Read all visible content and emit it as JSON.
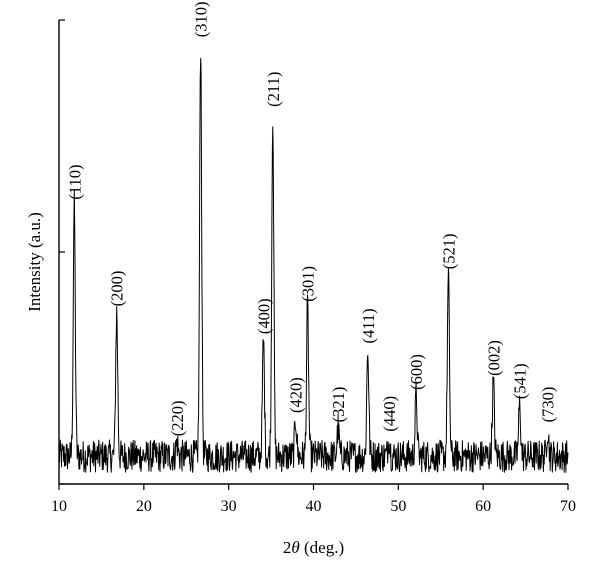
{
  "chart_data": {
    "type": "line",
    "title": "",
    "xlabel_italic": "θ",
    "xlabel_prefix": "2",
    "xlabel_suffix": " (deg.)",
    "ylabel": "Intensity (a.u.)",
    "xlim": [
      10,
      70
    ],
    "ylim": [
      0,
      100
    ],
    "x_ticks": [
      10,
      20,
      30,
      40,
      50,
      60,
      70
    ],
    "y_ticks": [
      0,
      50,
      100
    ],
    "y_tick_labels_shown": false,
    "grid": false,
    "legend": "none",
    "line_color": "#000000",
    "baseline_intensity": 6,
    "noise_amplitude": 3.5,
    "peaks": [
      {
        "hkl": "(110)",
        "two_theta": 11.8,
        "intensity": 60
      },
      {
        "hkl": "(200)",
        "two_theta": 16.8,
        "intensity": 37
      },
      {
        "hkl": "(220)",
        "two_theta": 23.9,
        "intensity": 9
      },
      {
        "hkl": "(310)",
        "two_theta": 26.7,
        "intensity": 95
      },
      {
        "hkl": "(400)",
        "two_theta": 34.1,
        "intensity": 31
      },
      {
        "hkl": "(211)",
        "two_theta": 35.2,
        "intensity": 80
      },
      {
        "hkl": "(420)",
        "two_theta": 37.9,
        "intensity": 14
      },
      {
        "hkl": "(301)",
        "two_theta": 39.3,
        "intensity": 38
      },
      {
        "hkl": "(321)",
        "two_theta": 42.9,
        "intensity": 12
      },
      {
        "hkl": "(411)",
        "two_theta": 46.4,
        "intensity": 29
      },
      {
        "hkl": "(440)",
        "two_theta": 48.9,
        "intensity": 10
      },
      {
        "hkl": "(600)",
        "two_theta": 52.1,
        "intensity": 19
      },
      {
        "hkl": "(521)",
        "two_theta": 55.9,
        "intensity": 45
      },
      {
        "hkl": "(002)",
        "two_theta": 61.2,
        "intensity": 22
      },
      {
        "hkl": "(541)",
        "two_theta": 64.3,
        "intensity": 17
      },
      {
        "hkl": "(730)",
        "two_theta": 67.6,
        "intensity": 12
      }
    ]
  }
}
